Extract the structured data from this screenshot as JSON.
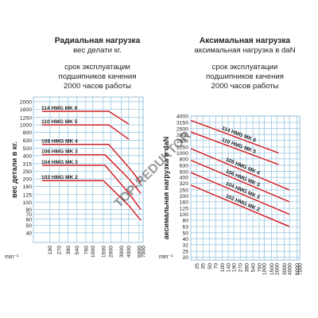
{
  "colors": {
    "grid": "#8fc0df",
    "curve": "#cc1f27",
    "text": "#222222",
    "watermark": "#9fb7c8"
  },
  "watermark": {
    "text": "TOP-REDUKTOR"
  },
  "chart_data": [
    {
      "type": "line",
      "title": "Радиальная нагрузка",
      "subtitle": "вес делати кг.",
      "note_lines": [
        "срок эксплуатации",
        "подшипников качения",
        "2000 часов работы"
      ],
      "xlabel": "min⁻¹",
      "ylabel": "вес детали в кг.",
      "x_scale": "log",
      "y_scale": "log",
      "xlim": [
        100,
        7000
      ],
      "ylim": [
        30,
        2300
      ],
      "x_ticks": [
        190,
        270,
        380,
        540,
        760,
        1000,
        1500,
        2000,
        3000,
        4000,
        6000,
        7000
      ],
      "y_ticks": [
        40,
        50,
        60,
        70,
        80,
        100,
        125,
        160,
        200,
        250,
        315,
        400,
        500,
        630,
        800,
        1000,
        1250,
        1600,
        2000
      ],
      "grid": true,
      "series": [
        {
          "name": "114 HMG MK 6",
          "x": [
            140,
            1850,
            4050
          ],
          "y": [
            1500,
            1500,
            1020
          ]
        },
        {
          "name": "110 HMG MK 5",
          "x": [
            140,
            1850,
            4050
          ],
          "y": [
            1000,
            1000,
            650
          ]
        },
        {
          "name": "108 HMG MK 4",
          "x": [
            140,
            1850,
            4050,
            6400
          ],
          "y": [
            560,
            560,
            280,
            180
          ]
        },
        {
          "name": "106 HMG MK 3",
          "x": [
            140,
            1600,
            4050,
            6400
          ],
          "y": [
            410,
            410,
            200,
            130
          ]
        },
        {
          "name": "104 HMG MK 3",
          "x": [
            140,
            1600,
            4050,
            6400
          ],
          "y": [
            300,
            300,
            130,
            80
          ]
        },
        {
          "name": "102 HMG MK 2",
          "x": [
            140,
            1500,
            4050,
            6400
          ],
          "y": [
            190,
            190,
            90,
            58
          ]
        }
      ]
    },
    {
      "type": "line",
      "title": "Аксимальная нагрузка",
      "subtitle": "аксимальная нагрузка в daN",
      "note_lines": [
        "срок эксплуатации",
        "подшипников качения",
        "2000 часов работы"
      ],
      "xlabel": "min⁻¹",
      "ylabel": "аксимальная нагрузка в daN",
      "x_scale": "log",
      "y_scale": "log",
      "xlim": [
        18,
        7000
      ],
      "ylim": [
        18,
        4000
      ],
      "x_ticks": [
        25,
        35,
        50,
        70,
        100,
        140,
        190,
        270,
        380,
        540,
        760,
        1000,
        1500,
        2000,
        3000,
        4000,
        6000,
        7000
      ],
      "y_ticks": [
        20,
        25,
        32,
        40,
        50,
        63,
        80,
        100,
        125,
        160,
        200,
        250,
        320,
        400,
        500,
        630,
        800,
        1000,
        1250,
        1600,
        2000,
        2500,
        3150,
        4000
      ],
      "grid": true,
      "series": [
        {
          "name": "114 HMG MK 6",
          "x": [
            18,
            2200
          ],
          "y": [
            3400,
            1000
          ]
        },
        {
          "name": "110 HMG MK 5",
          "x": [
            18,
            2200
          ],
          "y": [
            2200,
            650
          ]
        },
        {
          "name": "108 HMG MK 4",
          "x": [
            18,
            4000
          ],
          "y": [
            1180,
            250
          ]
        },
        {
          "name": "106 HMG MK 3",
          "x": [
            18,
            4000
          ],
          "y": [
            760,
            160
          ]
        },
        {
          "name": "104 HMG MK 3",
          "x": [
            18,
            4000
          ],
          "y": [
            480,
            100
          ]
        },
        {
          "name": "102 HMG MK 2",
          "x": [
            18,
            4000
          ],
          "y": [
            300,
            63
          ]
        }
      ]
    }
  ]
}
